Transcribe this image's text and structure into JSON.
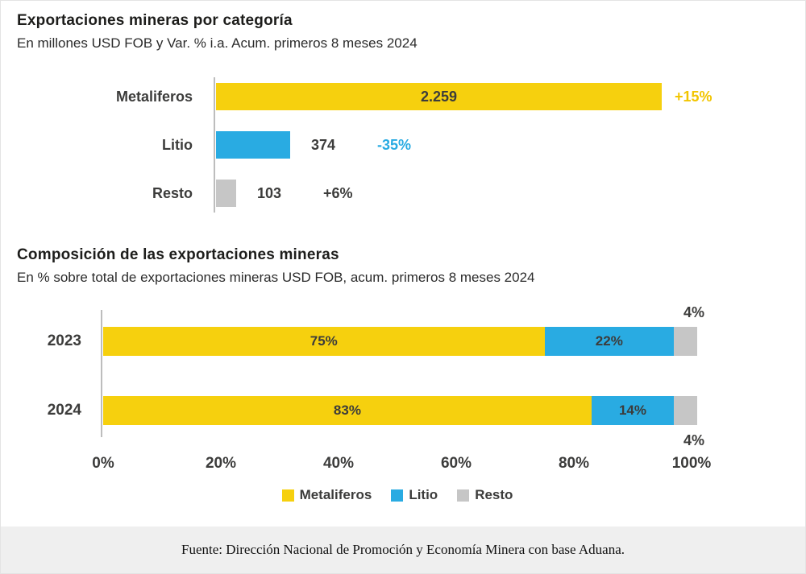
{
  "colors": {
    "metaliferos": "#F6D00E",
    "litio": "#29ABE2",
    "resto": "#C6C6C6",
    "text_dark": "#3C3C3B",
    "footer_bg": "#EFEFEF"
  },
  "chart_data": [
    {
      "type": "bar",
      "orientation": "horizontal",
      "title": "Exportaciones mineras por categoría",
      "subtitle": "En millones USD FOB y Var. % i.a. Acum. primeros 8 meses 2024",
      "xlim": [
        0,
        2259
      ],
      "grid": false,
      "rows": [
        {
          "category": "Metaliferos",
          "value": 2259,
          "value_label": "2.259",
          "change_label": "+15%",
          "color": "#F6D00E",
          "change_color": "#F2C500"
        },
        {
          "category": "Litio",
          "value": 374,
          "value_label": "374",
          "change_label": "-35%",
          "color": "#29ABE2",
          "change_color": "#29ABE2"
        },
        {
          "category": "Resto",
          "value": 103,
          "value_label": "103",
          "change_label": "+6%",
          "color": "#C6C6C6",
          "change_color": "#3C3C3B"
        }
      ]
    },
    {
      "type": "stacked-bar",
      "orientation": "horizontal",
      "title": "Composición de las exportaciones mineras",
      "subtitle": "En % sobre total de exportaciones mineras USD FOB, acum. primeros 8 meses 2024",
      "categories": [
        "2023",
        "2024"
      ],
      "series": [
        {
          "name": "Metaliferos",
          "color": "#F6D00E",
          "values": [
            75,
            83
          ],
          "labels": [
            "75%",
            "83%"
          ]
        },
        {
          "name": "Litio",
          "color": "#29ABE2",
          "values": [
            22,
            14
          ],
          "labels": [
            "22%",
            "14%"
          ]
        },
        {
          "name": "Resto",
          "color": "#C6C6C6",
          "values": [
            4,
            4
          ],
          "labels": [
            "4%",
            "4%"
          ]
        }
      ],
      "x_ticks": [
        "0%",
        "20%",
        "40%",
        "60%",
        "80%",
        "100%"
      ],
      "xlim": [
        0,
        100
      ],
      "legend": [
        "Metaliferos",
        "Litio",
        "Resto"
      ],
      "legend_position": "bottom"
    }
  ],
  "page": {
    "footer_source": "Fuente: Dirección Nacional de Promoción y Economía Minera con base Aduana."
  }
}
